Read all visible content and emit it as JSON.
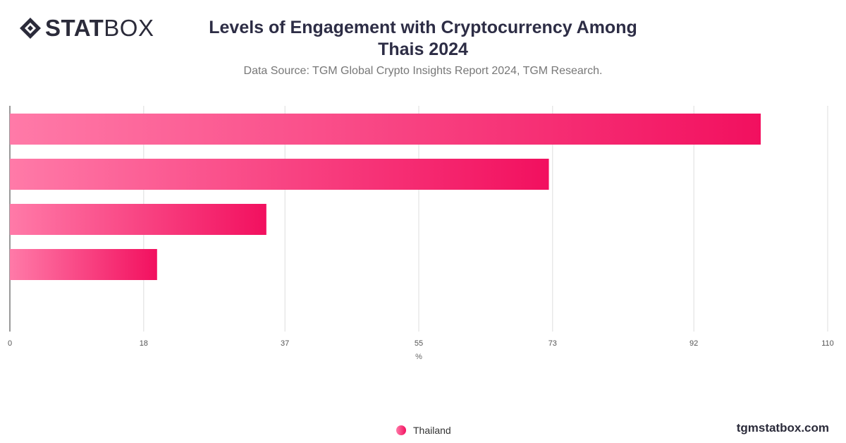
{
  "logo": {
    "bold": "STAT",
    "light": "BOX",
    "icon": "diamond-logo-icon"
  },
  "header": {
    "title": "Levels of Engagement with Cryptocurrency Among Thais 2024",
    "subtitle": "Data Source: TGM Global Crypto Insights Report 2024, TGM Research."
  },
  "chart_data": {
    "type": "bar",
    "orientation": "horizontal",
    "categories": [
      "",
      "",
      "",
      ""
    ],
    "series": [
      {
        "name": "Thailand",
        "values": [
          101,
          72.5,
          34.5,
          19.8
        ],
        "color_start": "#ff7aa8",
        "color_end": "#f2105f"
      }
    ],
    "xlabel": "%",
    "xlim": [
      0,
      110
    ],
    "x_ticks": [
      0,
      18,
      37,
      55,
      73,
      92,
      110
    ],
    "x_tick_labels": [
      "0",
      "18",
      "37",
      "55",
      "73",
      "92",
      "110"
    ],
    "grid": true,
    "legend_position": "bottom-center"
  },
  "legend": {
    "label": "Thailand"
  },
  "footer": {
    "brand": "tgmstatbox.com"
  }
}
